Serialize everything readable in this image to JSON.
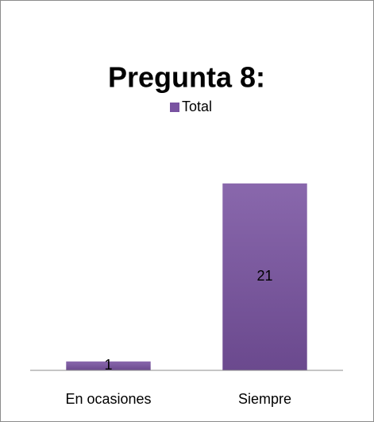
{
  "chart_data": {
    "type": "bar",
    "title": "Pregunta 8:",
    "categories": [
      "En ocasiones",
      "Siempre"
    ],
    "series": [
      {
        "name": "Total",
        "color": "#7953a1",
        "values": [
          1,
          21
        ]
      }
    ],
    "ylim": [
      0,
      25
    ],
    "legend": "top"
  }
}
